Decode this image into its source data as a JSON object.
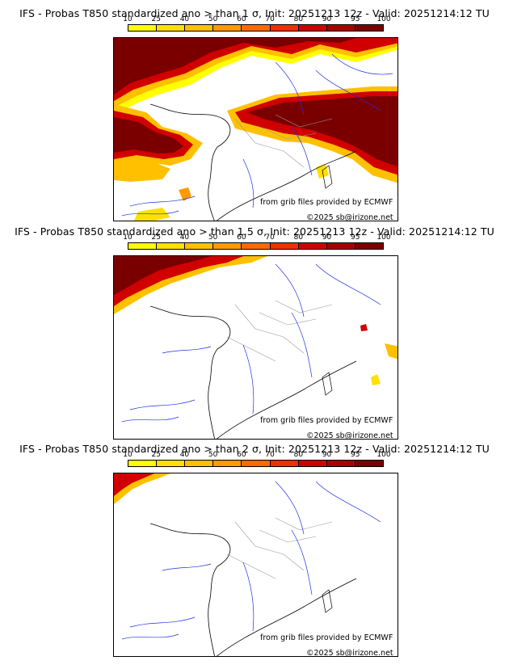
{
  "colorbar": {
    "ticks": [
      "10",
      "25",
      "40",
      "50",
      "60",
      "70",
      "80",
      "90",
      "95",
      "100"
    ],
    "colors": [
      "#ffff00",
      "#ffe000",
      "#ffc000",
      "#ff9a00",
      "#ff6a00",
      "#f03000",
      "#d00000",
      "#a80000",
      "#7a0000"
    ]
  },
  "panels": [
    {
      "title": "IFS - Probas T850  standardized ano > than 1 σ, Init: 20251213 12z - Valid: 20251214:12 TU",
      "credit1": "from grib files provided by ECMWF",
      "credit2": "©2025 sb@irizone.net"
    },
    {
      "title": "IFS - Probas T850  standardized ano > than 1.5 σ, Init: 20251213 12z - Valid: 20251214:12 TU",
      "credit1": "from grib files provided by ECMWF",
      "credit2": "©2025 sb@irizone.net"
    },
    {
      "title": "IFS - Probas T850  standardized ano > than 2 σ, Init: 20251213 12z - Valid: 20251214:12 TU",
      "credit1": "from grib files provided by ECMWF",
      "credit2": "©2025 sb@irizone.net"
    }
  ]
}
